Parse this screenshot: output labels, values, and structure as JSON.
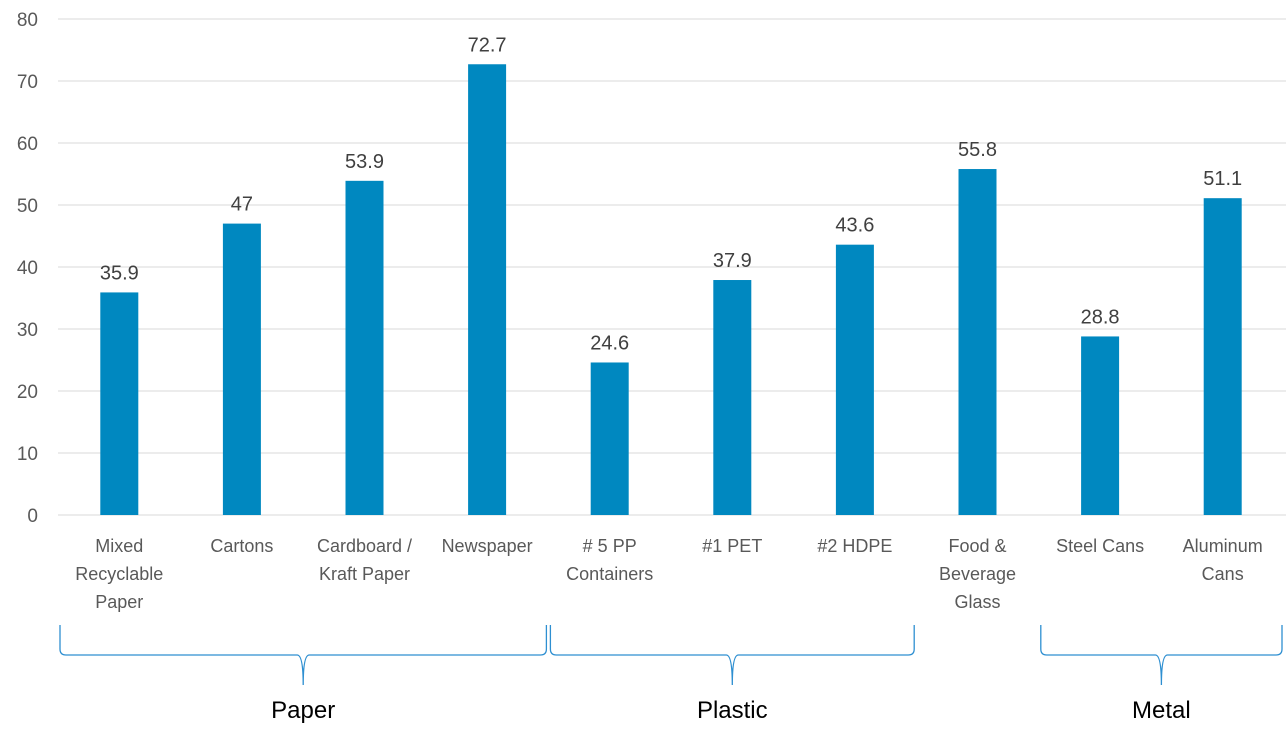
{
  "chart_data": {
    "type": "bar",
    "categories": [
      [
        "Mixed",
        "Recyclable",
        "Paper"
      ],
      [
        "Cartons"
      ],
      [
        "Cardboard /",
        "Kraft Paper"
      ],
      [
        "Newspaper"
      ],
      [
        "# 5 PP",
        "Containers"
      ],
      [
        "#1 PET"
      ],
      [
        "#2 HDPE"
      ],
      [
        "Food &",
        "Beverage",
        "Glass"
      ],
      [
        "Steel Cans"
      ],
      [
        "Aluminum",
        "Cans"
      ]
    ],
    "values": [
      35.9,
      47,
      53.9,
      72.7,
      24.6,
      37.9,
      43.6,
      55.8,
      28.8,
      51.1
    ],
    "data_labels": [
      "35.9",
      "47",
      "53.9",
      "72.7",
      "24.6",
      "37.9",
      "43.6",
      "55.8",
      "28.8",
      "51.1"
    ],
    "ylim": [
      0,
      80
    ],
    "yticks": [
      0,
      10,
      20,
      30,
      40,
      50,
      60,
      70,
      80
    ],
    "grid": true,
    "bar_color": "#0088c0",
    "groups": [
      {
        "label": "Paper",
        "from": 0,
        "to": 3
      },
      {
        "label": "Plastic",
        "from": 4,
        "to": 6
      },
      {
        "label": "Metal",
        "from": 8,
        "to": 9
      }
    ]
  },
  "colors": {
    "bar": "#0088c0",
    "grid": "#d9d9d9",
    "bracket": "#2e8fd1"
  }
}
